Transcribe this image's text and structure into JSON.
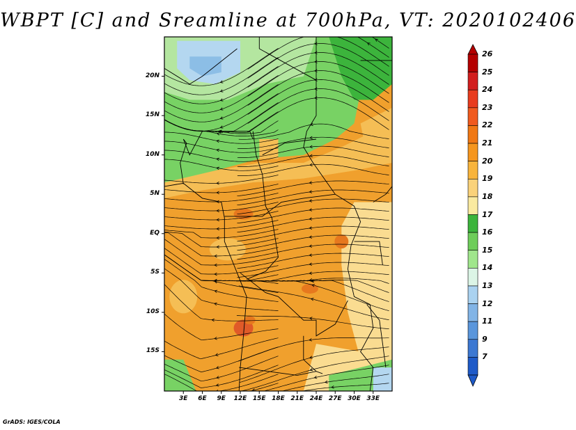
{
  "title": "WBPT [C] and Sreamline at 700hPa, VT: 2020102406",
  "footer": "GrADS: IGES/COLA",
  "map": {
    "lon_range": [
      0,
      36
    ],
    "lat_range": [
      -20,
      25
    ],
    "lat_ticks": [
      {
        "label": "20N",
        "value": 20
      },
      {
        "label": "15N",
        "value": 15
      },
      {
        "label": "10N",
        "value": 10
      },
      {
        "label": "5N",
        "value": 5
      },
      {
        "label": "EQ",
        "value": 0
      },
      {
        "label": "5S",
        "value": -5
      },
      {
        "label": "10S",
        "value": -10
      },
      {
        "label": "15S",
        "value": -15
      }
    ],
    "lon_ticks": [
      {
        "label": "3E",
        "value": 3
      },
      {
        "label": "6E",
        "value": 6
      },
      {
        "label": "9E",
        "value": 9
      },
      {
        "label": "12E",
        "value": 12
      },
      {
        "label": "15E",
        "value": 15
      },
      {
        "label": "18E",
        "value": 18
      },
      {
        "label": "21E",
        "value": 21
      },
      {
        "label": "24E",
        "value": 24
      },
      {
        "label": "27E",
        "value": 27
      },
      {
        "label": "30E",
        "value": 30
      },
      {
        "label": "33E",
        "value": 33
      }
    ]
  },
  "colorbar": {
    "levels": [
      "26",
      "25",
      "24",
      "23",
      "22",
      "21",
      "20",
      "19",
      "18",
      "17",
      "16",
      "15",
      "14",
      "13",
      "12",
      "11",
      "9",
      "7"
    ],
    "colors": [
      "#b40000",
      "#d21e1e",
      "#e83c1e",
      "#f05a1e",
      "#f07814",
      "#f5961e",
      "#f8b43c",
      "#fad27a",
      "#faeaa0",
      "#3cb43c",
      "#6ecd5a",
      "#a0e68c",
      "#dcf5e6",
      "#aad2f0",
      "#82b4e6",
      "#5a96dc",
      "#3c78d2",
      "#1e5ac8"
    ]
  },
  "field_colors": {
    "warm_dark": "#e6781e",
    "warm": "#f0a02d",
    "mild": "#f5be55",
    "pale": "#fadc91",
    "green_dark": "#3cb43c",
    "green": "#78d264",
    "green_light": "#b4e6a0",
    "blue_light": "#b4d7f0",
    "blue": "#8cbee6",
    "hot": "#e05a28"
  }
}
